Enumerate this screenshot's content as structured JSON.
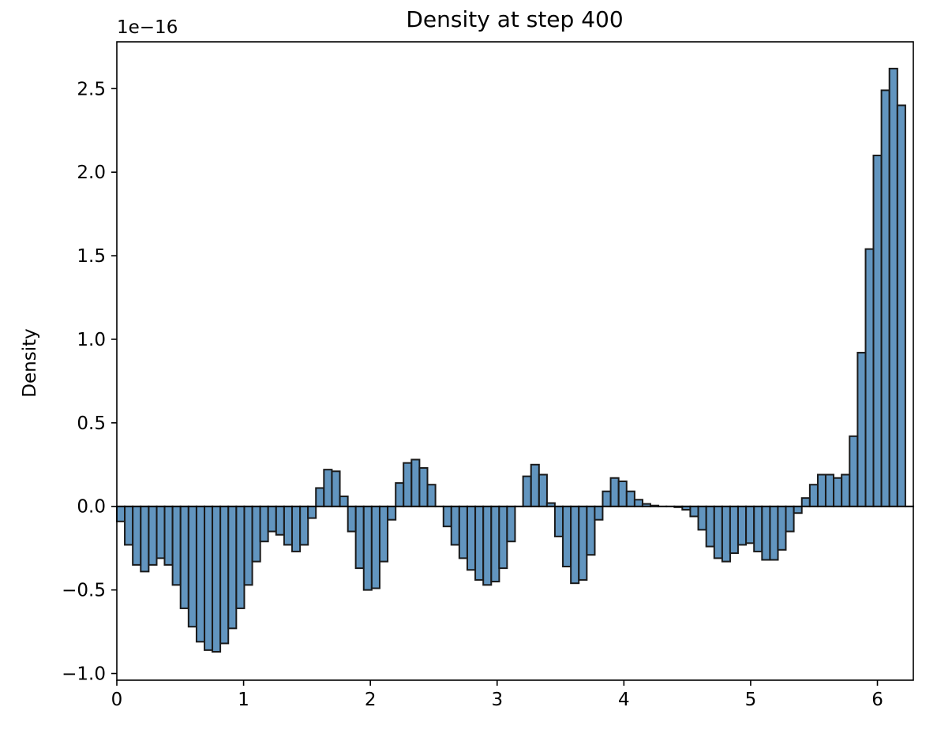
{
  "chart_data": {
    "type": "bar",
    "title": "Density at step 400",
    "xlabel": "",
    "ylabel": "Density",
    "y_offset_text": "1e−16",
    "xlim": [
      0,
      6.2832
    ],
    "ylim": [
      -1.04,
      2.78
    ],
    "x_ticks": [
      0,
      1,
      2,
      3,
      4,
      5,
      6
    ],
    "x_tick_labels": [
      "0",
      "1",
      "2",
      "3",
      "4",
      "5",
      "6"
    ],
    "y_ticks": [
      -1.0,
      -0.5,
      0.0,
      0.5,
      1.0,
      1.5,
      2.0,
      2.5
    ],
    "y_tick_labels": [
      "−1.0",
      "−0.5",
      "0.0",
      "0.5",
      "1.0",
      "1.5",
      "2.0",
      "2.5"
    ],
    "bar_color": "#4682b4",
    "edge_color": "#1a1a1a",
    "grid": false,
    "bin_width": 0.0628,
    "x": [
      0.031,
      0.094,
      0.157,
      0.22,
      0.283,
      0.346,
      0.408,
      0.471,
      0.534,
      0.597,
      0.66,
      0.723,
      0.785,
      0.848,
      0.911,
      0.974,
      1.037,
      1.1,
      1.162,
      1.225,
      1.288,
      1.351,
      1.414,
      1.477,
      1.539,
      1.602,
      1.665,
      1.728,
      1.791,
      1.854,
      1.916,
      1.979,
      2.042,
      2.105,
      2.168,
      2.231,
      2.293,
      2.356,
      2.419,
      2.482,
      2.545,
      2.608,
      2.67,
      2.733,
      2.796,
      2.859,
      2.922,
      2.985,
      3.047,
      3.11,
      3.173,
      3.236,
      3.299,
      3.362,
      3.424,
      3.487,
      3.55,
      3.613,
      3.676,
      3.739,
      3.801,
      3.864,
      3.927,
      3.99,
      4.053,
      4.116,
      4.178,
      4.241,
      4.304,
      4.367,
      4.43,
      4.492,
      4.555,
      4.618,
      4.681,
      4.744,
      4.807,
      4.869,
      4.932,
      4.995,
      5.058,
      5.121,
      5.184,
      5.246,
      5.309,
      5.372,
      5.435,
      5.498,
      5.561,
      5.623,
      5.686,
      5.749,
      5.812,
      5.875,
      5.938,
      6.0,
      6.063,
      6.126,
      6.189,
      6.252
    ],
    "values": [
      -0.09,
      -0.23,
      -0.35,
      -0.39,
      -0.35,
      -0.31,
      -0.35,
      -0.47,
      -0.61,
      -0.72,
      -0.81,
      -0.86,
      -0.87,
      -0.82,
      -0.73,
      -0.61,
      -0.47,
      -0.33,
      -0.21,
      -0.15,
      -0.17,
      -0.23,
      -0.27,
      -0.23,
      -0.07,
      0.11,
      0.22,
      0.21,
      0.06,
      -0.15,
      -0.37,
      -0.5,
      -0.49,
      -0.33,
      -0.08,
      0.14,
      0.26,
      0.28,
      0.23,
      0.13,
      0.0,
      -0.12,
      -0.23,
      -0.31,
      -0.38,
      -0.44,
      -0.47,
      -0.45,
      -0.37,
      -0.21,
      0.0,
      0.18,
      0.25,
      0.19,
      0.02,
      -0.18,
      -0.36,
      -0.46,
      -0.44,
      -0.29,
      -0.08,
      0.09,
      0.17,
      0.15,
      0.09,
      0.04,
      0.015,
      0.005,
      0.0,
      0.0,
      -0.005,
      -0.02,
      -0.06,
      -0.14,
      -0.24,
      -0.31,
      -0.33,
      -0.28,
      -0.23,
      -0.22,
      -0.27,
      -0.32,
      -0.32,
      -0.26,
      -0.15,
      -0.04,
      0.05,
      0.13,
      0.19,
      0.19,
      0.17,
      0.19,
      0.42,
      0.92,
      1.54,
      2.1,
      2.49,
      2.62,
      2.4,
      0.0
    ]
  }
}
